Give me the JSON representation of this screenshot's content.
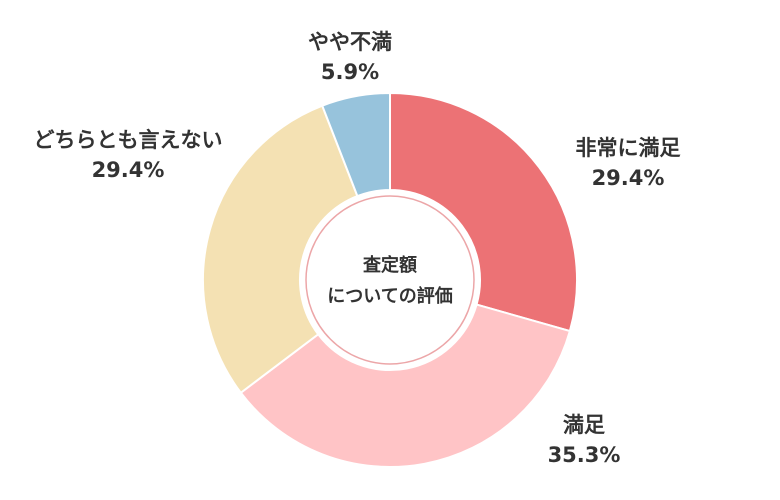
{
  "chart_data": {
    "type": "pie",
    "donut": true,
    "center_label": [
      "査定額",
      "についての評価"
    ],
    "slices": [
      {
        "label": "非常に満足",
        "value": 29.4,
        "value_label": "29.4%",
        "color": "#EC7275"
      },
      {
        "label": "満足",
        "value": 35.3,
        "value_label": "35.3%",
        "color": "#FFC4C6"
      },
      {
        "label": "どちらとも言えない",
        "value": 29.4,
        "value_label": "29.4%",
        "color": "#F4E1B3"
      },
      {
        "label": "やや不満",
        "value": 5.9,
        "value_label": "5.9%",
        "color": "#97C3DC"
      }
    ],
    "start_angle": "12 o'clock",
    "direction": "clockwise"
  }
}
